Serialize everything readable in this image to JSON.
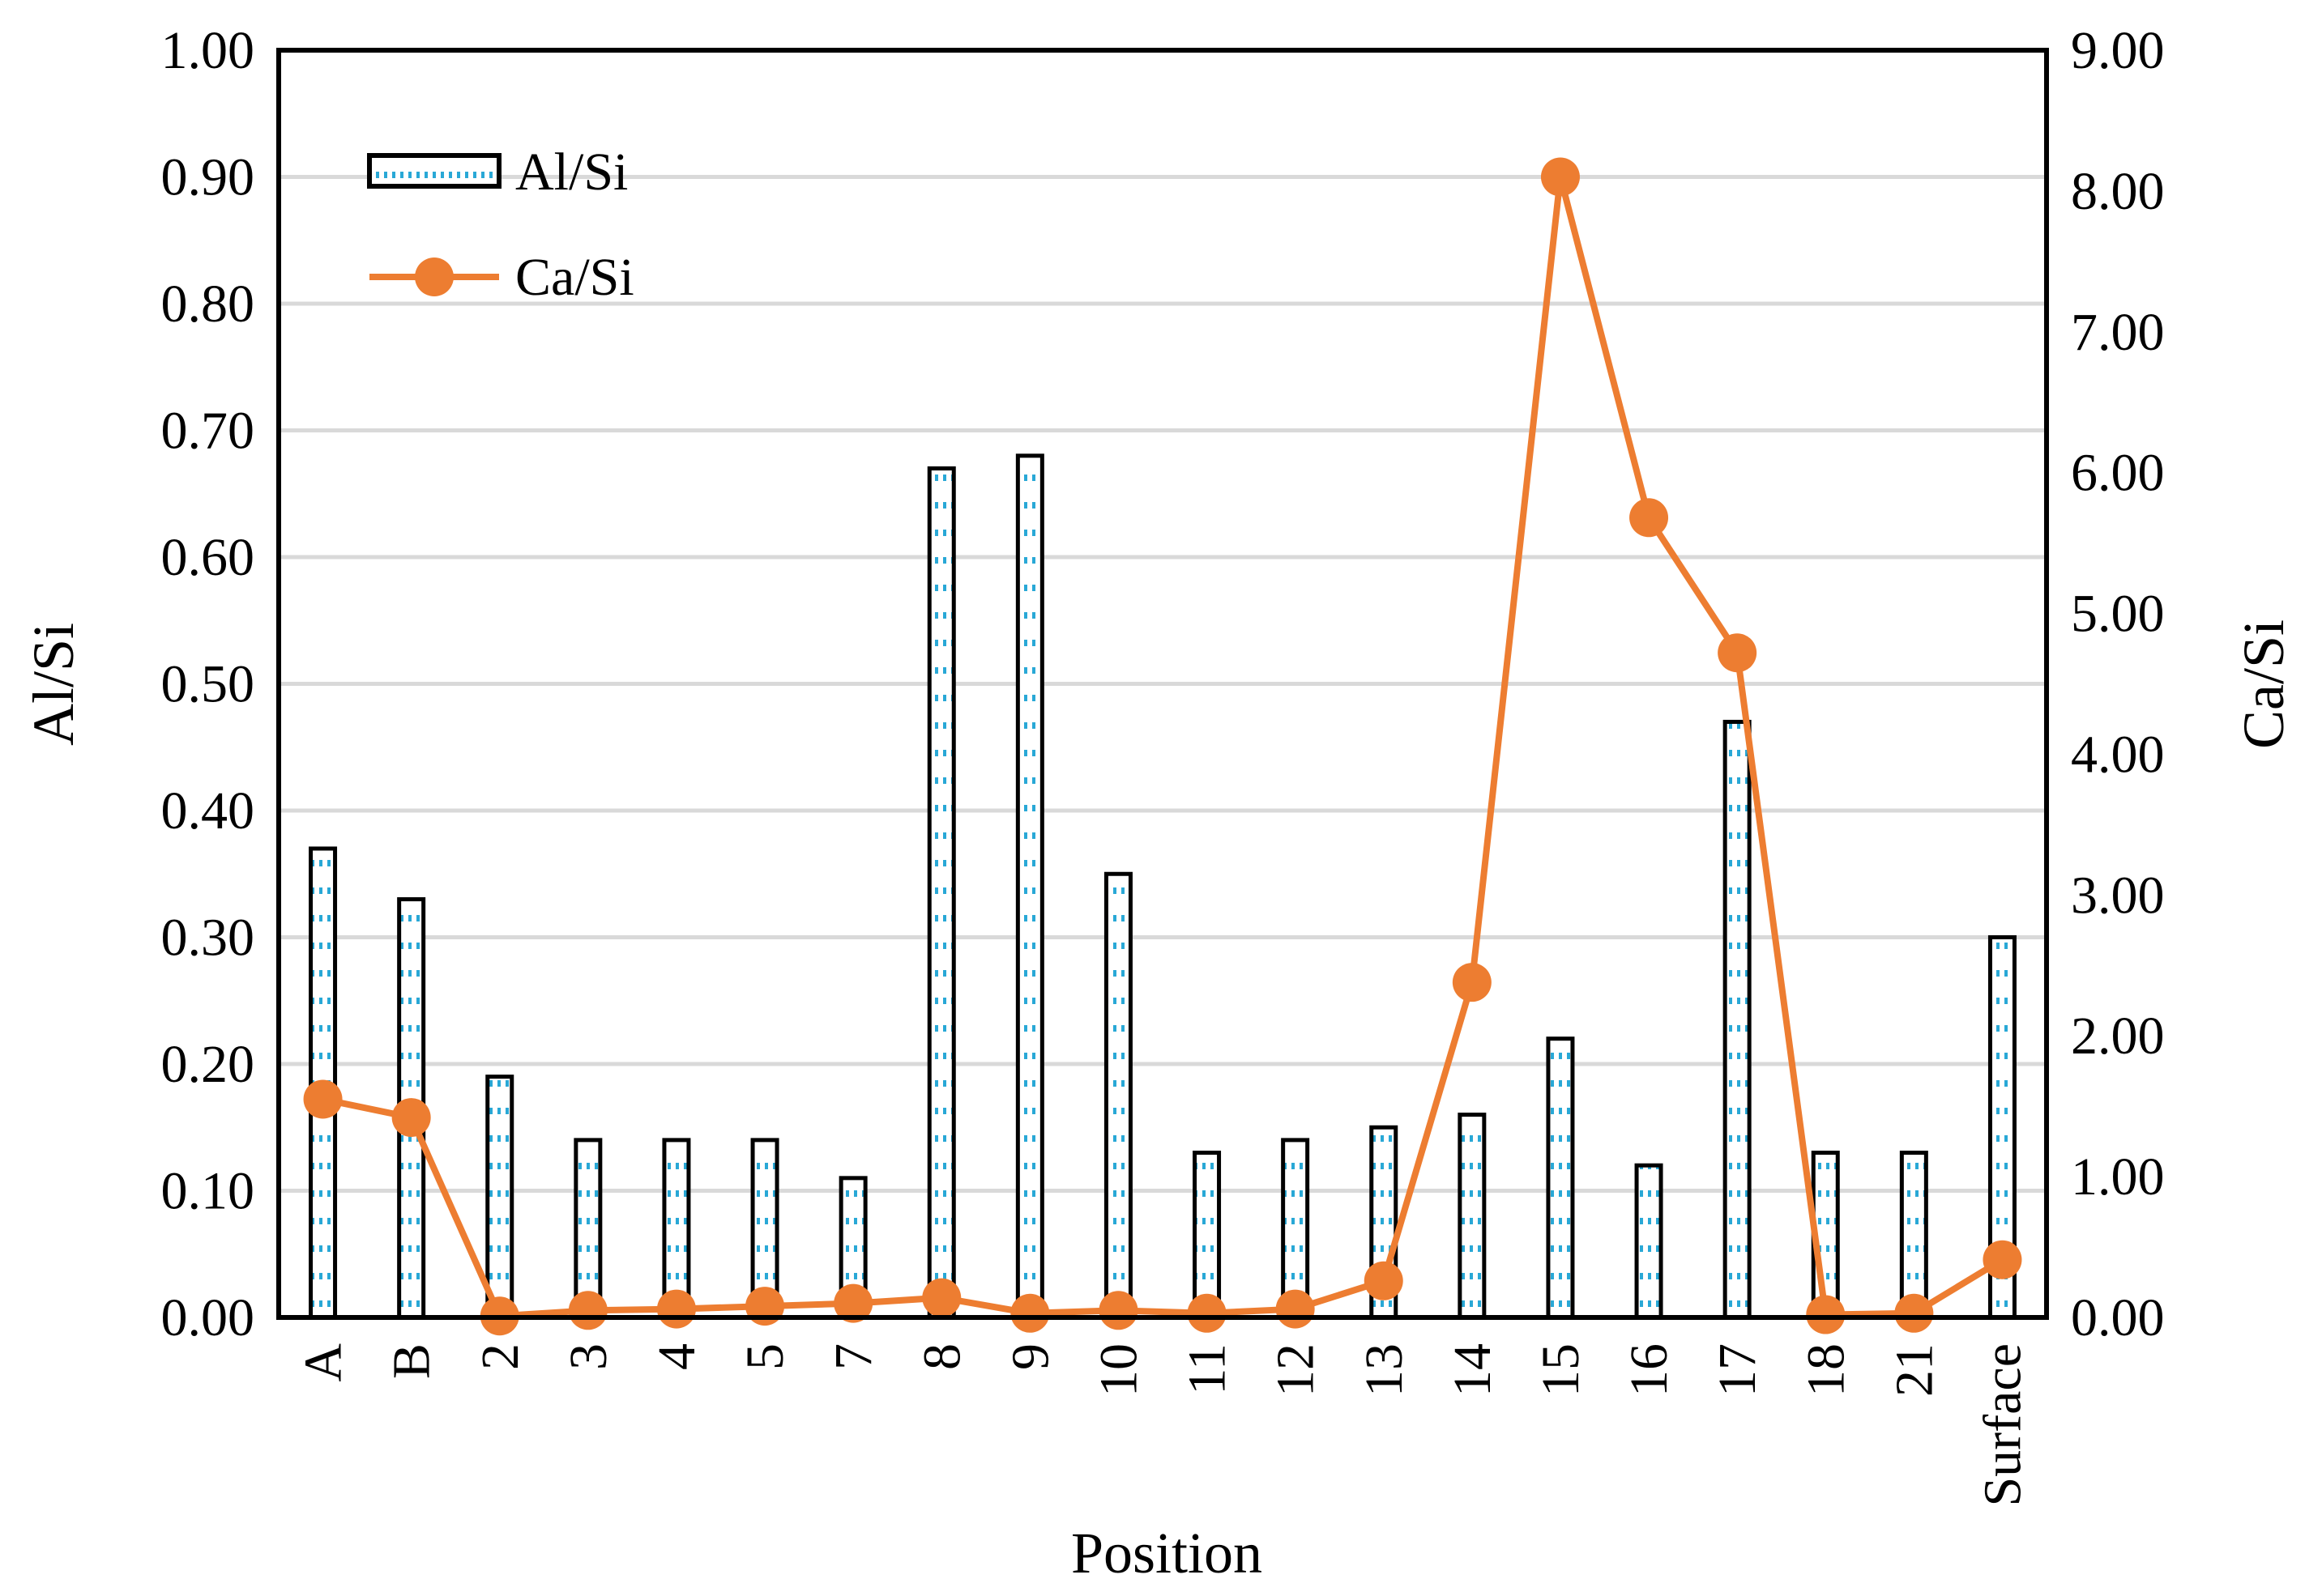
{
  "chart_data": {
    "type": "bar",
    "categories": [
      "A",
      "B",
      "2",
      "3",
      "4",
      "5",
      "7",
      "8",
      "9",
      "10",
      "11",
      "12",
      "13",
      "14",
      "15",
      "16",
      "17",
      "18",
      "21",
      "Surface"
    ],
    "series": [
      {
        "name": "Al/Si",
        "type": "bar",
        "axis": "left",
        "values": [
          0.37,
          0.33,
          0.19,
          0.14,
          0.14,
          0.14,
          0.11,
          0.67,
          0.68,
          0.35,
          0.13,
          0.14,
          0.15,
          0.16,
          0.22,
          0.12,
          0.47,
          0.13,
          0.13,
          0.3
        ]
      },
      {
        "name": "Ca/Si",
        "type": "line",
        "axis": "right",
        "values": [
          1.55,
          1.42,
          0.01,
          0.05,
          0.06,
          0.08,
          0.1,
          0.14,
          0.03,
          0.05,
          0.03,
          0.06,
          0.26,
          2.38,
          8.1,
          5.68,
          4.72,
          0.02,
          0.03,
          0.41
        ]
      }
    ],
    "xlabel": "Position",
    "ylabel": "Al/Si",
    "y2label": "Ca/Si",
    "ylim": [
      0,
      1
    ],
    "y2lim": [
      0,
      9
    ],
    "yticks": [
      "0.00",
      "0.10",
      "0.20",
      "0.30",
      "0.40",
      "0.50",
      "0.60",
      "0.70",
      "0.80",
      "0.90",
      "1.00"
    ],
    "y2ticks": [
      "0.00",
      "1.00",
      "2.00",
      "3.00",
      "4.00",
      "5.00",
      "6.00",
      "7.00",
      "8.00",
      "9.00"
    ],
    "grid": true,
    "legend_position": "top-left",
    "colors": {
      "bar_edge": "#000000",
      "bar_fill_dots": "#29a8d6",
      "line": "#ed7d31",
      "grid": "#d9d9d9"
    }
  }
}
